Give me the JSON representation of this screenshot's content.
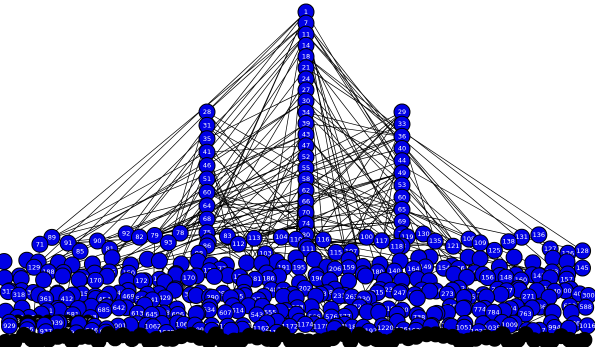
{
  "colors": {
    "node_fill": "#0000e6",
    "node_stroke": "#000000",
    "edge": "#000000",
    "label": "#ffffff",
    "dark_fill": "#000000"
  },
  "diagram": {
    "type": "hierarchical-node-link-graph",
    "center_column_labels": [
      "1",
      "7",
      "11",
      "14",
      "18",
      "21",
      "24",
      "27",
      "30",
      "34",
      "39",
      "43",
      "47",
      "52",
      "55",
      "58",
      "62",
      "66",
      "70",
      "74",
      "80",
      "87"
    ],
    "left_column_labels": [
      "28",
      "31",
      "35",
      "41",
      "46",
      "51",
      "60",
      "64",
      "68",
      "75",
      "86"
    ],
    "right_column_labels": [
      "29",
      "33",
      "36",
      "40",
      "44",
      "49",
      "53",
      "60",
      "65",
      "69",
      "76",
      "88"
    ],
    "upper_band_labels": [
      "71",
      "89",
      "91",
      "85",
      "90",
      "81",
      "92",
      "82",
      "79",
      "93",
      "78",
      "98",
      "84",
      "83",
      "112",
      "113",
      "103",
      "104",
      "110",
      "111",
      "116",
      "115",
      "107",
      "100",
      "117",
      "118",
      "119",
      "130",
      "135",
      "121",
      "108",
      "109",
      "125",
      "138",
      "131",
      "136",
      "127",
      "126",
      "128"
    ],
    "band_2_labels": [
      "193",
      "129",
      "188",
      "151",
      "158",
      "170",
      "155",
      "150",
      "172",
      "151",
      "175",
      "170",
      "176",
      "177",
      "176",
      "181",
      "186",
      "191",
      "195",
      "196",
      "206",
      "159",
      "197",
      "180",
      "140",
      "164",
      "149",
      "154",
      "166",
      "143",
      "156",
      "148",
      "160",
      "142",
      "153",
      "157",
      "145"
    ],
    "band_3_labels": [
      "317",
      "318",
      "360",
      "361",
      "405",
      "412",
      "415",
      "420",
      "454",
      "442",
      "469",
      "501",
      "441",
      "429",
      "377",
      "341",
      "289",
      "290",
      "291",
      "295",
      "262",
      "270",
      "248",
      "262",
      "281",
      "202",
      "213",
      "228",
      "231",
      "263",
      "230",
      "215",
      "237",
      "247",
      "245",
      "235",
      "226",
      "273",
      "242",
      "256",
      "222",
      "233",
      "267",
      "274",
      "271",
      "263",
      "240",
      "400",
      "401",
      "300"
    ],
    "band_4_labels": [
      "584",
      "522",
      "591",
      "664",
      "581",
      "683",
      "685",
      "642",
      "613",
      "645",
      "658",
      "696",
      "698",
      "634",
      "607",
      "614",
      "543",
      "555",
      "557",
      "563",
      "566",
      "576",
      "577",
      "723",
      "721",
      "719",
      "700",
      "738",
      "752",
      "746",
      "759",
      "774",
      "784",
      "794",
      "763",
      "586",
      "599",
      "630",
      "588"
    ],
    "band_5_labels": [
      "929",
      "936",
      "937",
      "939",
      "944",
      "946",
      "995",
      "1001",
      "1055",
      "1062",
      "1065",
      "1066",
      "1097",
      "1113",
      "1155",
      "1158",
      "1162",
      "1164",
      "1172",
      "1174",
      "1178",
      "1183",
      "1185",
      "1192",
      "1220",
      "1063",
      "1087",
      "1079",
      "1046",
      "1051",
      "1026",
      "1035",
      "1009",
      "1003",
      "997",
      "994",
      "986",
      "1016"
    ],
    "bottom_labels": [
      "8",
      "9",
      "2",
      "3",
      "4",
      "5",
      "6",
      "10"
    ]
  }
}
